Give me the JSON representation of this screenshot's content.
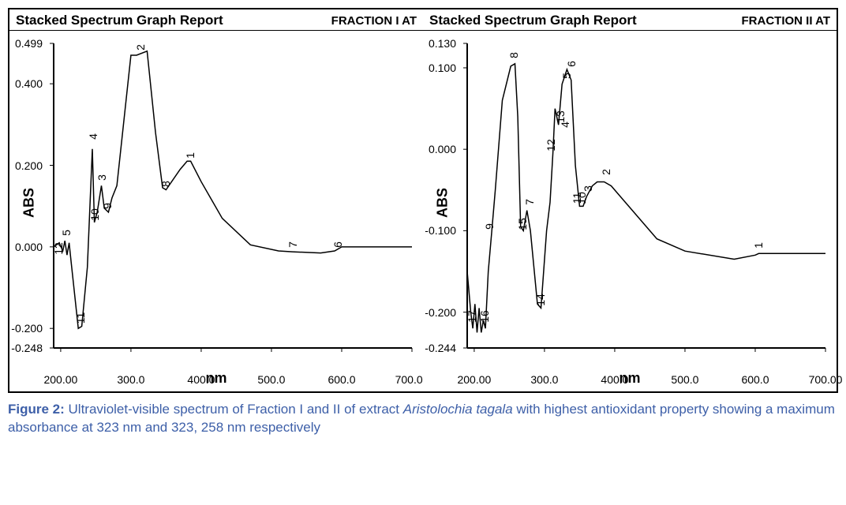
{
  "caption": {
    "label_prefix": "Figure 2:",
    "text_part1": " Ultraviolet-visible spectrum of Fraction I and II of extract ",
    "italic": "Aristolochia tagala",
    "text_part2": " with highest antioxidant property showing a maximum absorbance at 323 nm and 323, 258 nm respectively"
  },
  "panels": [
    {
      "title": "Stacked Spectrum Graph Report",
      "fraction": "FRACTION I AT",
      "y_axis_label": "ABS",
      "x_axis_label": "nm",
      "xlim": [
        190,
        700
      ],
      "ylim": [
        -0.248,
        0.499
      ],
      "x_ticks": [
        200,
        300,
        400,
        500,
        600,
        700
      ],
      "x_tick_labels": [
        "200.00",
        "300.0",
        "400.0",
        "500.0",
        "600.0",
        "700.00"
      ],
      "y_ticks": [
        -0.248,
        -0.2,
        0.0,
        0.2,
        0.4,
        0.499
      ],
      "y_tick_labels": [
        "-0.248",
        "-0.200",
        "0.000",
        "0.200",
        "0.400",
        "0.499"
      ],
      "line_color": "#000000",
      "data": [
        [
          190,
          0.0
        ],
        [
          198,
          0.01
        ],
        [
          203,
          -0.01
        ],
        [
          206,
          0.015
        ],
        [
          209,
          -0.02
        ],
        [
          212,
          0.01
        ],
        [
          215,
          -0.04
        ],
        [
          225,
          -0.2
        ],
        [
          230,
          -0.195
        ],
        [
          238,
          -0.05
        ],
        [
          245,
          0.24
        ],
        [
          248,
          0.06
        ],
        [
          252,
          0.085
        ],
        [
          258,
          0.15
        ],
        [
          262,
          0.095
        ],
        [
          268,
          0.085
        ],
        [
          273,
          0.12
        ],
        [
          280,
          0.15
        ],
        [
          300,
          0.47
        ],
        [
          308,
          0.47
        ],
        [
          323,
          0.48
        ],
        [
          335,
          0.28
        ],
        [
          345,
          0.145
        ],
        [
          350,
          0.14
        ],
        [
          370,
          0.19
        ],
        [
          380,
          0.21
        ],
        [
          385,
          0.21
        ],
        [
          400,
          0.16
        ],
        [
          430,
          0.07
        ],
        [
          470,
          0.005
        ],
        [
          510,
          -0.01
        ],
        [
          530,
          -0.012
        ],
        [
          570,
          -0.015
        ],
        [
          590,
          -0.01
        ],
        [
          600,
          0.0
        ],
        [
          700,
          0.0
        ]
      ],
      "peak_labels": [
        {
          "n": "12",
          "nm": 197,
          "abs": -0.005
        },
        {
          "n": "5",
          "nm": 208,
          "abs": 0.035
        },
        {
          "n": "11",
          "nm": 228,
          "abs": -0.175
        },
        {
          "n": "4",
          "nm": 246,
          "abs": 0.27
        },
        {
          "n": "10",
          "nm": 248,
          "abs": 0.08
        },
        {
          "n": "3",
          "nm": 258,
          "abs": 0.17
        },
        {
          "n": "9",
          "nm": 266,
          "abs": 0.1
        },
        {
          "n": "2",
          "nm": 314,
          "abs": 0.49
        },
        {
          "n": "8",
          "nm": 349,
          "abs": 0.155
        },
        {
          "n": "1",
          "nm": 384,
          "abs": 0.225
        },
        {
          "n": "7",
          "nm": 530,
          "abs": 0.005
        },
        {
          "n": "6",
          "nm": 594,
          "abs": 0.005
        }
      ]
    },
    {
      "title": "Stacked Spectrum Graph Report",
      "fraction": "FRACTION II AT",
      "y_axis_label": "ABS",
      "x_axis_label": "nm",
      "xlim": [
        190,
        700
      ],
      "ylim": [
        -0.244,
        0.13
      ],
      "x_ticks": [
        200,
        300,
        400,
        500,
        600,
        700
      ],
      "x_tick_labels": [
        "200.00",
        "300.0",
        "400.0",
        "500.0",
        "600.0",
        "700.00"
      ],
      "y_ticks": [
        -0.244,
        -0.2,
        -0.1,
        0.0,
        0.1,
        0.13
      ],
      "y_tick_labels": [
        "-0.244",
        "-0.200",
        "-0.100",
        "0.000",
        "0.100",
        "0.130"
      ],
      "line_color": "#000000",
      "data": [
        [
          190,
          -0.15
        ],
        [
          195,
          -0.2
        ],
        [
          198,
          -0.22
        ],
        [
          201,
          -0.19
        ],
        [
          204,
          -0.225
        ],
        [
          207,
          -0.195
        ],
        [
          210,
          -0.225
        ],
        [
          213,
          -0.21
        ],
        [
          216,
          -0.22
        ],
        [
          220,
          -0.15
        ],
        [
          225,
          -0.1
        ],
        [
          230,
          -0.05
        ],
        [
          240,
          0.06
        ],
        [
          252,
          0.102
        ],
        [
          258,
          0.105
        ],
        [
          262,
          0.04
        ],
        [
          266,
          -0.095
        ],
        [
          270,
          -0.1
        ],
        [
          275,
          -0.075
        ],
        [
          280,
          -0.1
        ],
        [
          290,
          -0.19
        ],
        [
          295,
          -0.195
        ],
        [
          303,
          -0.1
        ],
        [
          308,
          -0.065
        ],
        [
          312,
          -0.005
        ],
        [
          315,
          0.05
        ],
        [
          320,
          0.03
        ],
        [
          325,
          0.08
        ],
        [
          332,
          0.098
        ],
        [
          338,
          0.085
        ],
        [
          344,
          -0.02
        ],
        [
          350,
          -0.07
        ],
        [
          355,
          -0.07
        ],
        [
          360,
          -0.058
        ],
        [
          368,
          -0.045
        ],
        [
          375,
          -0.04
        ],
        [
          385,
          -0.04
        ],
        [
          395,
          -0.045
        ],
        [
          420,
          -0.07
        ],
        [
          460,
          -0.11
        ],
        [
          500,
          -0.125
        ],
        [
          570,
          -0.135
        ],
        [
          600,
          -0.13
        ],
        [
          605,
          -0.128
        ],
        [
          700,
          -0.128
        ]
      ],
      "peak_labels": [
        {
          "n": "17",
          "nm": 197,
          "abs": -0.205
        },
        {
          "n": "16",
          "nm": 215,
          "abs": -0.205
        },
        {
          "n": "9",
          "nm": 222,
          "abs": -0.095
        },
        {
          "n": "8",
          "nm": 256,
          "abs": 0.115
        },
        {
          "n": "15",
          "nm": 269,
          "abs": -0.092
        },
        {
          "n": "7",
          "nm": 279,
          "abs": -0.065
        },
        {
          "n": "14",
          "nm": 294,
          "abs": -0.185
        },
        {
          "n": "12",
          "nm": 309,
          "abs": 0.005
        },
        {
          "n": "13",
          "nm": 322,
          "abs": 0.04
        },
        {
          "n": "5",
          "nm": 331,
          "abs": 0.09
        },
        {
          "n": "6",
          "nm": 338,
          "abs": 0.105
        },
        {
          "n": "4",
          "nm": 329,
          "abs": 0.03
        },
        {
          "n": "11",
          "nm": 346,
          "abs": -0.06
        },
        {
          "n": "10",
          "nm": 353,
          "abs": -0.06
        },
        {
          "n": "3",
          "nm": 362,
          "abs": -0.048
        },
        {
          "n": "2",
          "nm": 388,
          "abs": -0.028
        },
        {
          "n": "1",
          "nm": 604,
          "abs": -0.118
        }
      ]
    }
  ]
}
